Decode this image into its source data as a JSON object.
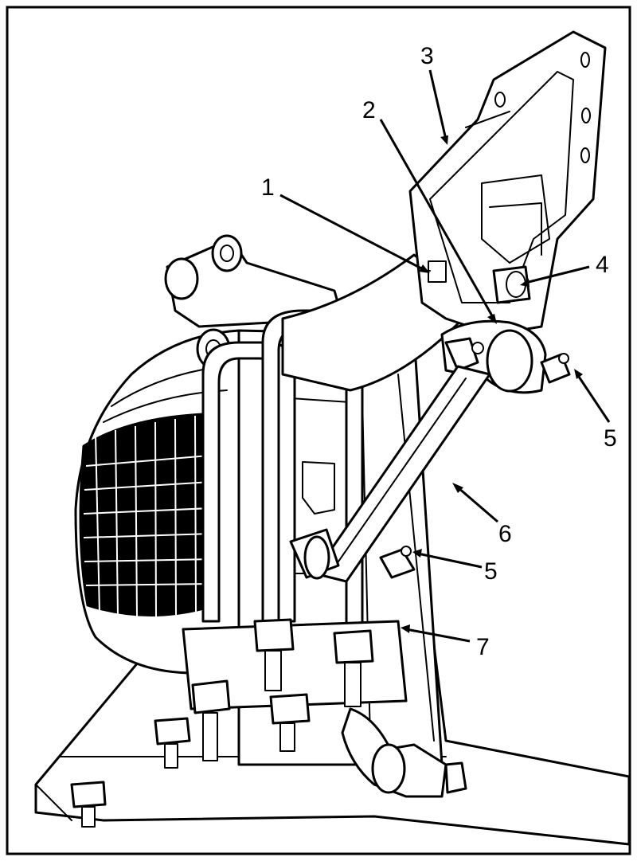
{
  "diagram": {
    "callouts": [
      {
        "id": "1",
        "label": "1"
      },
      {
        "id": "2",
        "label": "2"
      },
      {
        "id": "3",
        "label": "3"
      },
      {
        "id": "4",
        "label": "4"
      },
      {
        "id": "5a",
        "label": "5"
      },
      {
        "id": "5b",
        "label": "5"
      },
      {
        "id": "6",
        "label": "6"
      },
      {
        "id": "7",
        "label": "7"
      }
    ]
  }
}
